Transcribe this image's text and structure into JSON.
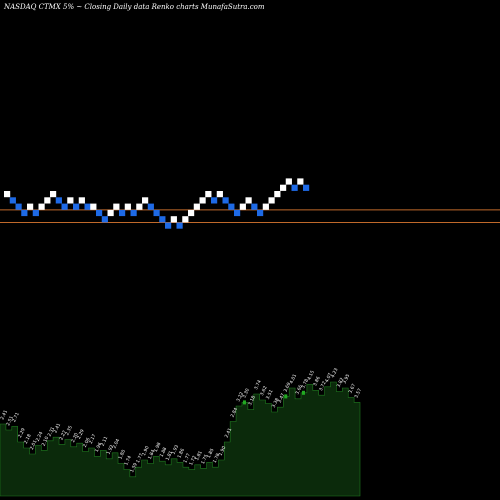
{
  "header": {
    "text": "NASDAQ CTMX  5% ~  Closing Daily data  Renko  charts MunafaSutra.com"
  },
  "colors": {
    "background": "#000000",
    "up_brick": "#ffffff",
    "down_brick": "#1e6ae6",
    "reference_line": "#c0692a",
    "volume_fill": "#0b2a0b",
    "volume_edge": "#1f7a1f",
    "volume_highlight": "#22aa22"
  },
  "chart_data": [
    {
      "type": "renko",
      "chart_name": "price",
      "brick_size_pct": 5,
      "bricks": [
        {
          "dir": "up",
          "level": 3
        },
        {
          "dir": "down",
          "level": 2
        },
        {
          "dir": "down",
          "level": 1
        },
        {
          "dir": "down",
          "level": 0
        },
        {
          "dir": "up",
          "level": 1
        },
        {
          "dir": "down",
          "level": 0
        },
        {
          "dir": "up",
          "level": 1
        },
        {
          "dir": "up",
          "level": 2
        },
        {
          "dir": "up",
          "level": 3
        },
        {
          "dir": "down",
          "level": 2
        },
        {
          "dir": "down",
          "level": 1
        },
        {
          "dir": "up",
          "level": 2
        },
        {
          "dir": "down",
          "level": 1
        },
        {
          "dir": "up",
          "level": 2
        },
        {
          "dir": "down",
          "level": 1
        },
        {
          "dir": "up",
          "level": 1
        },
        {
          "dir": "down",
          "level": 0
        },
        {
          "dir": "down",
          "level": -1
        },
        {
          "dir": "up",
          "level": 0
        },
        {
          "dir": "up",
          "level": 1
        },
        {
          "dir": "down",
          "level": 0
        },
        {
          "dir": "up",
          "level": 1
        },
        {
          "dir": "down",
          "level": 0
        },
        {
          "dir": "up",
          "level": 1
        },
        {
          "dir": "up",
          "level": 2
        },
        {
          "dir": "down",
          "level": 1
        },
        {
          "dir": "down",
          "level": 0
        },
        {
          "dir": "down",
          "level": -1
        },
        {
          "dir": "down",
          "level": -2
        },
        {
          "dir": "up",
          "level": -1
        },
        {
          "dir": "down",
          "level": -2
        },
        {
          "dir": "up",
          "level": -1
        },
        {
          "dir": "up",
          "level": 0
        },
        {
          "dir": "up",
          "level": 1
        },
        {
          "dir": "up",
          "level": 2
        },
        {
          "dir": "up",
          "level": 3
        },
        {
          "dir": "down",
          "level": 2
        },
        {
          "dir": "up",
          "level": 3
        },
        {
          "dir": "down",
          "level": 2
        },
        {
          "dir": "down",
          "level": 1
        },
        {
          "dir": "down",
          "level": 0
        },
        {
          "dir": "up",
          "level": 1
        },
        {
          "dir": "up",
          "level": 2
        },
        {
          "dir": "down",
          "level": 1
        },
        {
          "dir": "down",
          "level": 0
        },
        {
          "dir": "up",
          "level": 1
        },
        {
          "dir": "up",
          "level": 2
        },
        {
          "dir": "up",
          "level": 3
        },
        {
          "dir": "up",
          "level": 4
        },
        {
          "dir": "up",
          "level": 5
        },
        {
          "dir": "down",
          "level": 4
        },
        {
          "dir": "up",
          "level": 5
        },
        {
          "dir": "down",
          "level": 4
        }
      ],
      "reference_lines": [
        {
          "level": 0.5
        },
        {
          "level": -1.5
        }
      ]
    },
    {
      "type": "area",
      "chart_name": "volume",
      "values": [
        {
          "v": 0.6,
          "label": "2.41"
        },
        {
          "v": 0.55,
          "label": "2.51"
        },
        {
          "v": 0.58,
          "label": "2.71"
        },
        {
          "v": 0.45,
          "label": "2.29"
        },
        {
          "v": 0.4,
          "label": "2.18"
        },
        {
          "v": 0.35,
          "label": "2.01"
        },
        {
          "v": 0.42,
          "label": "2.24"
        },
        {
          "v": 0.38,
          "label": "2.10"
        },
        {
          "v": 0.46,
          "label": "2.31"
        },
        {
          "v": 0.49,
          "label": "2.41"
        },
        {
          "v": 0.43,
          "label": "2.27"
        },
        {
          "v": 0.47,
          "label": "2.35"
        },
        {
          "v": 0.41,
          "label": "2.20"
        },
        {
          "v": 0.44,
          "label": "2.29"
        },
        {
          "v": 0.37,
          "label": "2.06"
        },
        {
          "v": 0.4,
          "label": "2.17"
        },
        {
          "v": 0.33,
          "label": "1.96"
        },
        {
          "v": 0.38,
          "label": "2.11"
        },
        {
          "v": 0.31,
          "label": "1.92"
        },
        {
          "v": 0.36,
          "label": "2.04"
        },
        {
          "v": 0.27,
          "label": "1.80"
        },
        {
          "v": 0.22,
          "label": "1.74"
        },
        {
          "v": 0.16,
          "label": "1.59"
        },
        {
          "v": 0.24,
          "label": "1.77"
        },
        {
          "v": 0.3,
          "label": "1.90"
        },
        {
          "v": 0.27,
          "label": "1.84"
        },
        {
          "v": 0.33,
          "label": "1.98"
        },
        {
          "v": 0.29,
          "label": "1.88"
        },
        {
          "v": 0.26,
          "label": "1.81"
        },
        {
          "v": 0.31,
          "label": "1.93"
        },
        {
          "v": 0.28,
          "label": "1.86"
        },
        {
          "v": 0.24,
          "label": "1.77"
        },
        {
          "v": 0.22,
          "label": "1.72"
        },
        {
          "v": 0.26,
          "label": "1.81"
        },
        {
          "v": 0.23,
          "label": "1.75"
        },
        {
          "v": 0.28,
          "label": "1.85"
        },
        {
          "v": 0.24,
          "label": "1.78"
        },
        {
          "v": 0.3,
          "label": "1.90"
        },
        {
          "v": 0.45,
          "label": "2.41"
        },
        {
          "v": 0.62,
          "label": "2.84"
        },
        {
          "v": 0.75,
          "label": "3.22"
        },
        {
          "v": 0.78,
          "label": "3.30"
        },
        {
          "v": 0.72,
          "label": "3.18"
        },
        {
          "v": 0.85,
          "label": "3.74"
        },
        {
          "v": 0.8,
          "label": "3.62"
        },
        {
          "v": 0.77,
          "label": "3.51"
        },
        {
          "v": 0.7,
          "label": "3.38"
        },
        {
          "v": 0.74,
          "label": "3.47"
        },
        {
          "v": 0.83,
          "label": "3.69"
        },
        {
          "v": 0.9,
          "label": "4.01"
        },
        {
          "v": 0.81,
          "label": "3.66"
        },
        {
          "v": 0.86,
          "label": "3.78"
        },
        {
          "v": 0.93,
          "label": "4.15"
        },
        {
          "v": 0.88,
          "label": "3.86"
        },
        {
          "v": 0.84,
          "label": "3.72"
        },
        {
          "v": 0.91,
          "label": "4.07"
        },
        {
          "v": 0.95,
          "label": "4.23"
        },
        {
          "v": 0.87,
          "label": "3.82"
        },
        {
          "v": 0.9,
          "label": "3.95"
        },
        {
          "v": 0.82,
          "label": "3.67"
        },
        {
          "v": 0.78,
          "label": "3.57"
        }
      ]
    }
  ]
}
